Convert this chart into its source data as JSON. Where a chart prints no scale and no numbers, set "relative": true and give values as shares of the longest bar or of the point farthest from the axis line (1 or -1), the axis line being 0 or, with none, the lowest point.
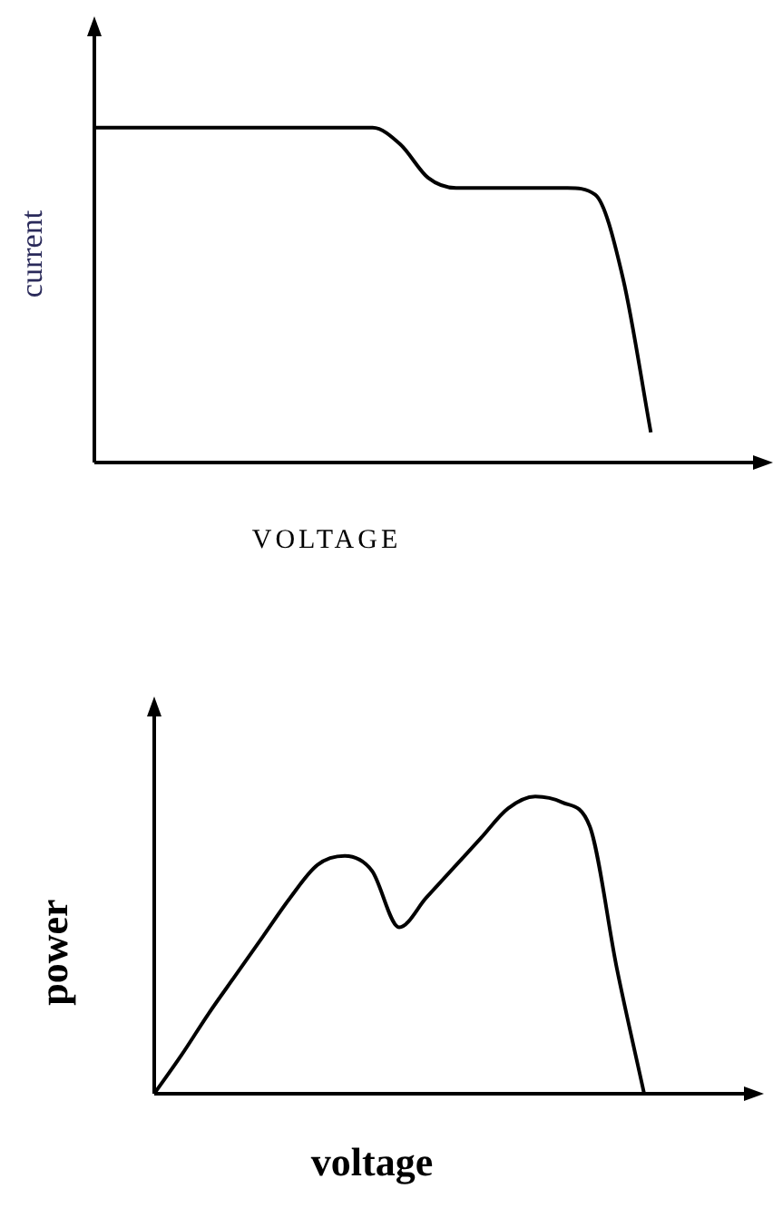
{
  "chart_data": [
    {
      "type": "line",
      "relative": true,
      "xlabel": "VOLTAGE",
      "ylabel": "current",
      "color": "#000000",
      "categories": [
        null,
        null,
        null,
        null,
        null,
        null,
        null,
        null,
        null,
        null,
        null,
        null,
        null,
        null,
        null,
        null,
        null,
        null,
        null,
        null,
        null,
        null,
        null,
        null,
        null
      ],
      "values": [
        1,
        1,
        1,
        1,
        1,
        1,
        1,
        1,
        1,
        1,
        1,
        0.95,
        0.85,
        0.82,
        0.82,
        0.82,
        0.82,
        0.82,
        0.8,
        0.55,
        0.09,
        null,
        null,
        null,
        null
      ]
    },
    {
      "type": "line",
      "relative": true,
      "xlabel": "voltage",
      "ylabel": "power",
      "color": "#000000",
      "categories": [
        null,
        null,
        null,
        null,
        null,
        null,
        null,
        null,
        null,
        null,
        null,
        null,
        null,
        null,
        null,
        null,
        null,
        null,
        null,
        null,
        null,
        null,
        null
      ],
      "values": [
        0,
        0.13,
        0.27,
        0.4,
        0.53,
        0.66,
        0.77,
        0.8,
        0.75,
        0.56,
        0.66,
        0.76,
        0.86,
        0.96,
        1,
        0.98,
        0.9,
        0.42,
        0,
        null,
        null,
        null,
        null
      ]
    }
  ]
}
